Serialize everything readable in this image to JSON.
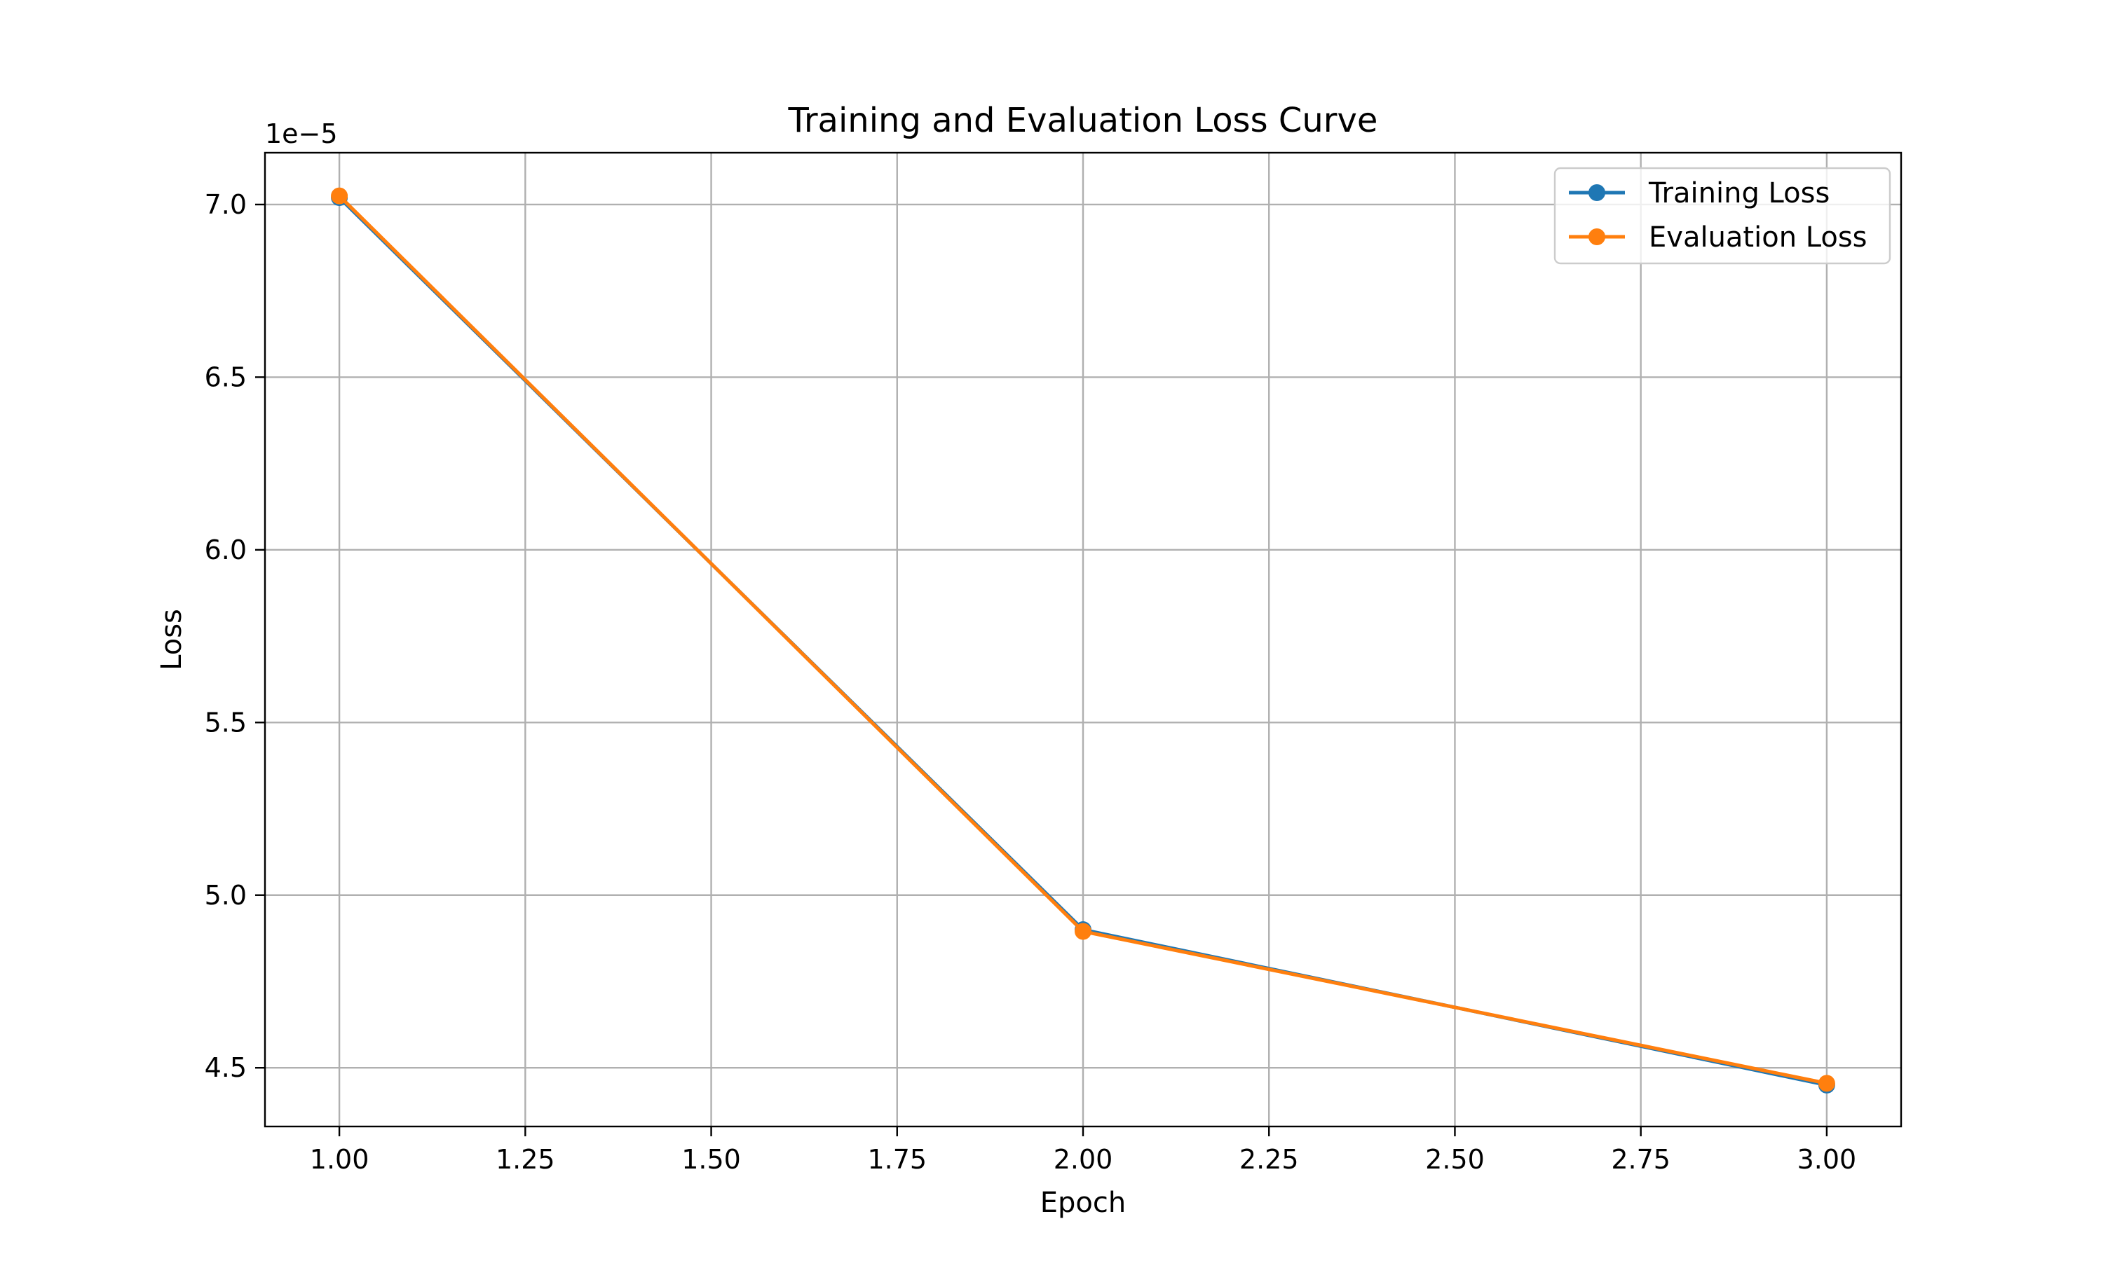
{
  "chart_data": {
    "type": "line",
    "title": "Training and Evaluation Loss Curve",
    "xlabel": "Epoch",
    "ylabel": "Loss",
    "y_offset_label": "1e−5",
    "y_scale_factor": 1e-05,
    "xlim": [
      0.9,
      3.1
    ],
    "ylim": [
      4.33e-05,
      7.15e-05
    ],
    "grid": true,
    "legend_position": "top-right",
    "x_ticks": [
      1.0,
      1.25,
      1.5,
      1.75,
      2.0,
      2.25,
      2.5,
      2.75,
      3.0
    ],
    "x_tick_labels": [
      "1.00",
      "1.25",
      "1.50",
      "1.75",
      "2.00",
      "2.25",
      "2.50",
      "2.75",
      "3.00"
    ],
    "y_ticks": [
      4.5e-05,
      5e-05,
      5.5e-05,
      6e-05,
      6.5e-05,
      7e-05
    ],
    "y_tick_labels": [
      "4.5",
      "5.0",
      "5.5",
      "6.0",
      "6.5",
      "7.0"
    ],
    "series": [
      {
        "name": "Training Loss",
        "color": "#1f77b4",
        "marker": "circle",
        "x": [
          1,
          2,
          3
        ],
        "y": [
          7.02e-05,
          4.9e-05,
          4.45e-05
        ]
      },
      {
        "name": "Evaluation Loss",
        "color": "#ff7f0e",
        "marker": "circle",
        "x": [
          1,
          2,
          3
        ],
        "y": [
          7.025e-05,
          4.895e-05,
          4.455e-05
        ]
      }
    ]
  }
}
